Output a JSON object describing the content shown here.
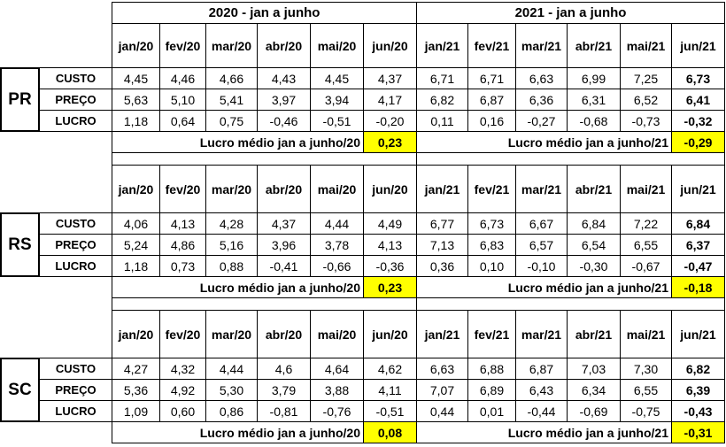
{
  "year_headers": [
    "2020 - jan a junho",
    "2021 - jan a junho"
  ],
  "months": [
    "jan/20",
    "fev/20",
    "mar/20",
    "abr/20",
    "mai/20",
    "jun/20",
    "jan/21",
    "fev/21",
    "mar/21",
    "abr/21",
    "mai/21",
    "jun/21"
  ],
  "summary_labels": [
    "Lucro médio jan a junho/20",
    "Lucro médio jan a junho/21"
  ],
  "blocks": [
    {
      "state": "PR",
      "rows": [
        {
          "label": "CUSTO",
          "values": [
            "4,45",
            "4,46",
            "4,66",
            "4,43",
            "4,45",
            "4,37",
            "6,71",
            "6,71",
            "6,63",
            "6,99",
            "7,25",
            "6,73"
          ]
        },
        {
          "label": "PREÇO",
          "values": [
            "5,63",
            "5,10",
            "5,41",
            "3,97",
            "3,94",
            "4,17",
            "6,82",
            "6,87",
            "6,36",
            "6,31",
            "6,52",
            "6,41"
          ]
        },
        {
          "label": "LUCRO",
          "values": [
            "1,18",
            "0,64",
            "0,75",
            "-0,46",
            "-0,51",
            "-0,20",
            "0,11",
            "0,16",
            "-0,27",
            "-0,68",
            "-0,73",
            "-0,32"
          ]
        }
      ],
      "avg_2020": "0,23",
      "avg_2021": "-0,29"
    },
    {
      "state": "RS",
      "rows": [
        {
          "label": "CUSTO",
          "values": [
            "4,06",
            "4,13",
            "4,28",
            "4,37",
            "4,44",
            "4,49",
            "6,77",
            "6,73",
            "6,67",
            "6,84",
            "7,22",
            "6,84"
          ]
        },
        {
          "label": "PREÇO",
          "values": [
            "5,24",
            "4,86",
            "5,16",
            "3,96",
            "3,78",
            "4,13",
            "7,13",
            "6,83",
            "6,57",
            "6,54",
            "6,55",
            "6,37"
          ]
        },
        {
          "label": "LUCRO",
          "values": [
            "1,18",
            "0,73",
            "0,88",
            "-0,41",
            "-0,66",
            "-0,36",
            "0,36",
            "0,10",
            "-0,10",
            "-0,30",
            "-0,67",
            "-0,47"
          ]
        }
      ],
      "avg_2020": "0,23",
      "avg_2021": "-0,18"
    },
    {
      "state": "SC",
      "rows": [
        {
          "label": "CUSTO",
          "values": [
            "4,27",
            "4,32",
            "4,44",
            "4,6",
            "4,64",
            "4,62",
            "6,63",
            "6,88",
            "6,87",
            "7,03",
            "7,30",
            "6,82"
          ]
        },
        {
          "label": "PREÇO",
          "values": [
            "5,36",
            "4,92",
            "5,30",
            "3,79",
            "3,88",
            "4,11",
            "7,07",
            "6,89",
            "6,43",
            "6,34",
            "6,55",
            "6,39"
          ]
        },
        {
          "label": "LUCRO",
          "values": [
            "1,09",
            "0,60",
            "0,86",
            "-0,81",
            "-0,76",
            "-0,51",
            "0,44",
            "0,01",
            "-0,44",
            "-0,69",
            "-0,75",
            "-0,43"
          ]
        }
      ],
      "avg_2020": "0,08",
      "avg_2021": "-0,31"
    }
  ]
}
